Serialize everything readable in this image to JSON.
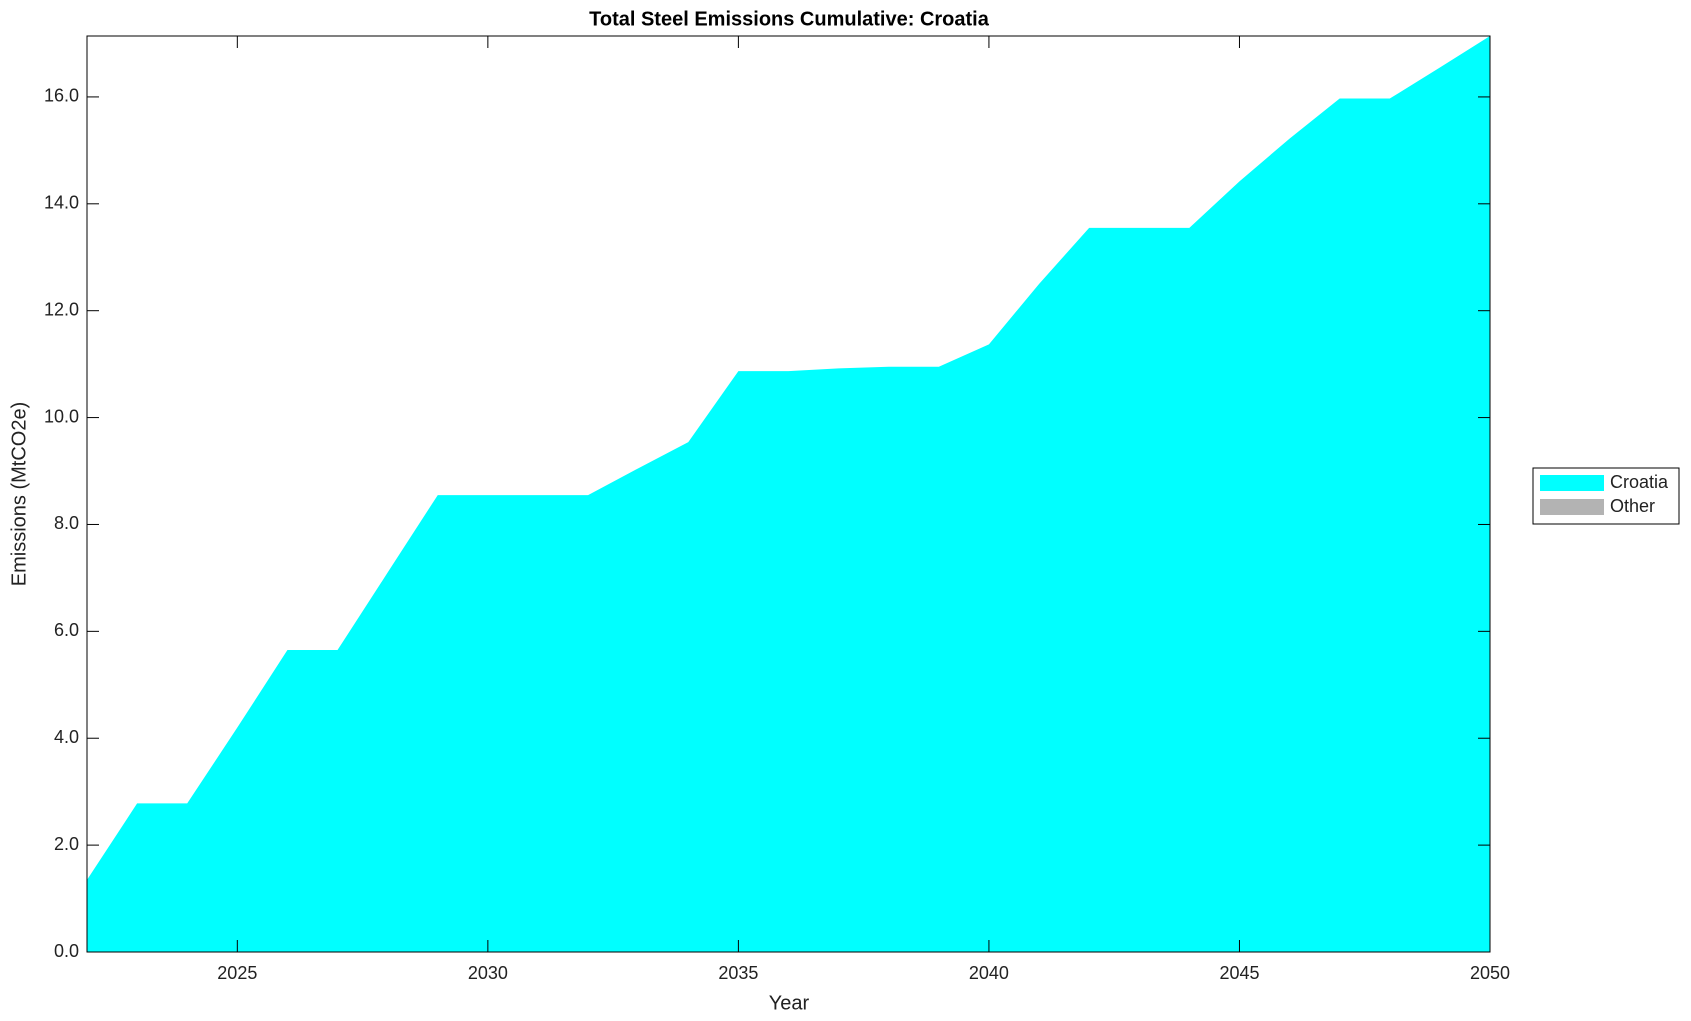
{
  "chart_data": {
    "type": "area",
    "title": "Total Steel Emissions Cumulative: Croatia",
    "x_label": "Year",
    "y_label": "Emissions (MtCO2e)",
    "x": [
      2022,
      2023,
      2024,
      2025,
      2026,
      2027,
      2028,
      2029,
      2030,
      2031,
      2032,
      2033,
      2034,
      2035,
      2036,
      2037,
      2038,
      2039,
      2040,
      2041,
      2042,
      2043,
      2044,
      2045,
      2046,
      2047,
      2048,
      2049,
      2050
    ],
    "series": [
      {
        "name": "Croatia",
        "color": "#00ffff",
        "values": [
          1.35,
          2.78,
          2.78,
          4.2,
          5.65,
          5.65,
          7.1,
          8.55,
          8.55,
          8.55,
          8.55,
          9.05,
          9.54,
          10.87,
          10.87,
          10.92,
          10.95,
          10.95,
          11.37,
          12.5,
          13.55,
          13.55,
          13.55,
          14.42,
          15.22,
          15.97,
          15.97,
          16.55,
          17.14
        ]
      },
      {
        "name": "Other",
        "color": "#b3b3b3",
        "values": [
          0,
          0,
          0,
          0,
          0,
          0,
          0,
          0,
          0,
          0,
          0,
          0,
          0,
          0,
          0,
          0,
          0,
          0,
          0,
          0,
          0,
          0,
          0,
          0,
          0,
          0,
          0,
          0,
          0
        ]
      }
    ],
    "stacked": true,
    "xlim": [
      2022,
      2050
    ],
    "xticks": [
      2025,
      2030,
      2035,
      2040,
      2045,
      2050
    ],
    "ylim": [
      0,
      17.14
    ],
    "yticks": [
      {
        "value": 0,
        "label": "0.0"
      },
      {
        "value": 2,
        "label": "2.0"
      },
      {
        "value": 4,
        "label": "4.0"
      },
      {
        "value": 6,
        "label": "6.0"
      },
      {
        "value": 8,
        "label": "8.0"
      },
      {
        "value": 10,
        "label": "10.0"
      },
      {
        "value": 12,
        "label": "12.0"
      },
      {
        "value": 14,
        "label": "14.0"
      },
      {
        "value": 16,
        "label": "16.0"
      }
    ],
    "grid": false,
    "legend": "right"
  }
}
